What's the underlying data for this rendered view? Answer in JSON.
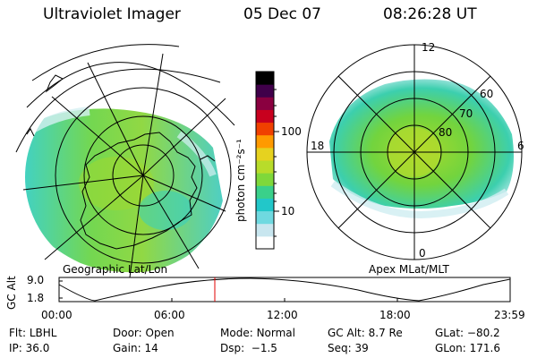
{
  "header": {
    "instrument": "Ultraviolet Imager",
    "date": "05 Dec 07",
    "time": "08:26:28 UT"
  },
  "left_panel": {
    "caption": "Geographic Lat/Lon"
  },
  "right_panel": {
    "caption": "Apex MLat/MLT",
    "mlt_labels": {
      "top": "12",
      "left": "18",
      "right": "6",
      "bottom": "0"
    },
    "mlat_labels": [
      "60",
      "70",
      "80"
    ]
  },
  "colorbar": {
    "unit_label": "photon cm⁻²s⁻¹",
    "ticks": [
      "100",
      "10"
    ],
    "colors": [
      "#ffffff",
      "#c8e6ef",
      "#6fd9e0",
      "#22c7c9",
      "#3ad08a",
      "#7fd83a",
      "#b8dc2a",
      "#e6d21f",
      "#ff9a00",
      "#f04000",
      "#c8001e",
      "#8a0040",
      "#40004a",
      "#000000"
    ]
  },
  "orbit": {
    "axis_label": "GC Alt",
    "y_ticks": [
      "9.0",
      "1.8"
    ],
    "x_ticks": [
      "00:00",
      "06:00",
      "12:00",
      "18:00",
      "23:59"
    ]
  },
  "info": {
    "row1": [
      {
        "label": "Flt:",
        "value": "LBHL"
      },
      {
        "label": "Door:",
        "value": "Open"
      },
      {
        "label": "Mode:",
        "value": "Normal"
      },
      {
        "label": "GC Alt:",
        "value": "8.7 Re"
      },
      {
        "label": "GLat:",
        "value": "−80.2"
      }
    ],
    "row2": [
      {
        "label": "IP:",
        "value": "36.0"
      },
      {
        "label": "Gain:",
        "value": "14"
      },
      {
        "label": "Dsp:",
        "value": "−1.5"
      },
      {
        "label": "Seq:",
        "value": "39"
      },
      {
        "label": "GLon:",
        "value": "171.6"
      }
    ]
  }
}
